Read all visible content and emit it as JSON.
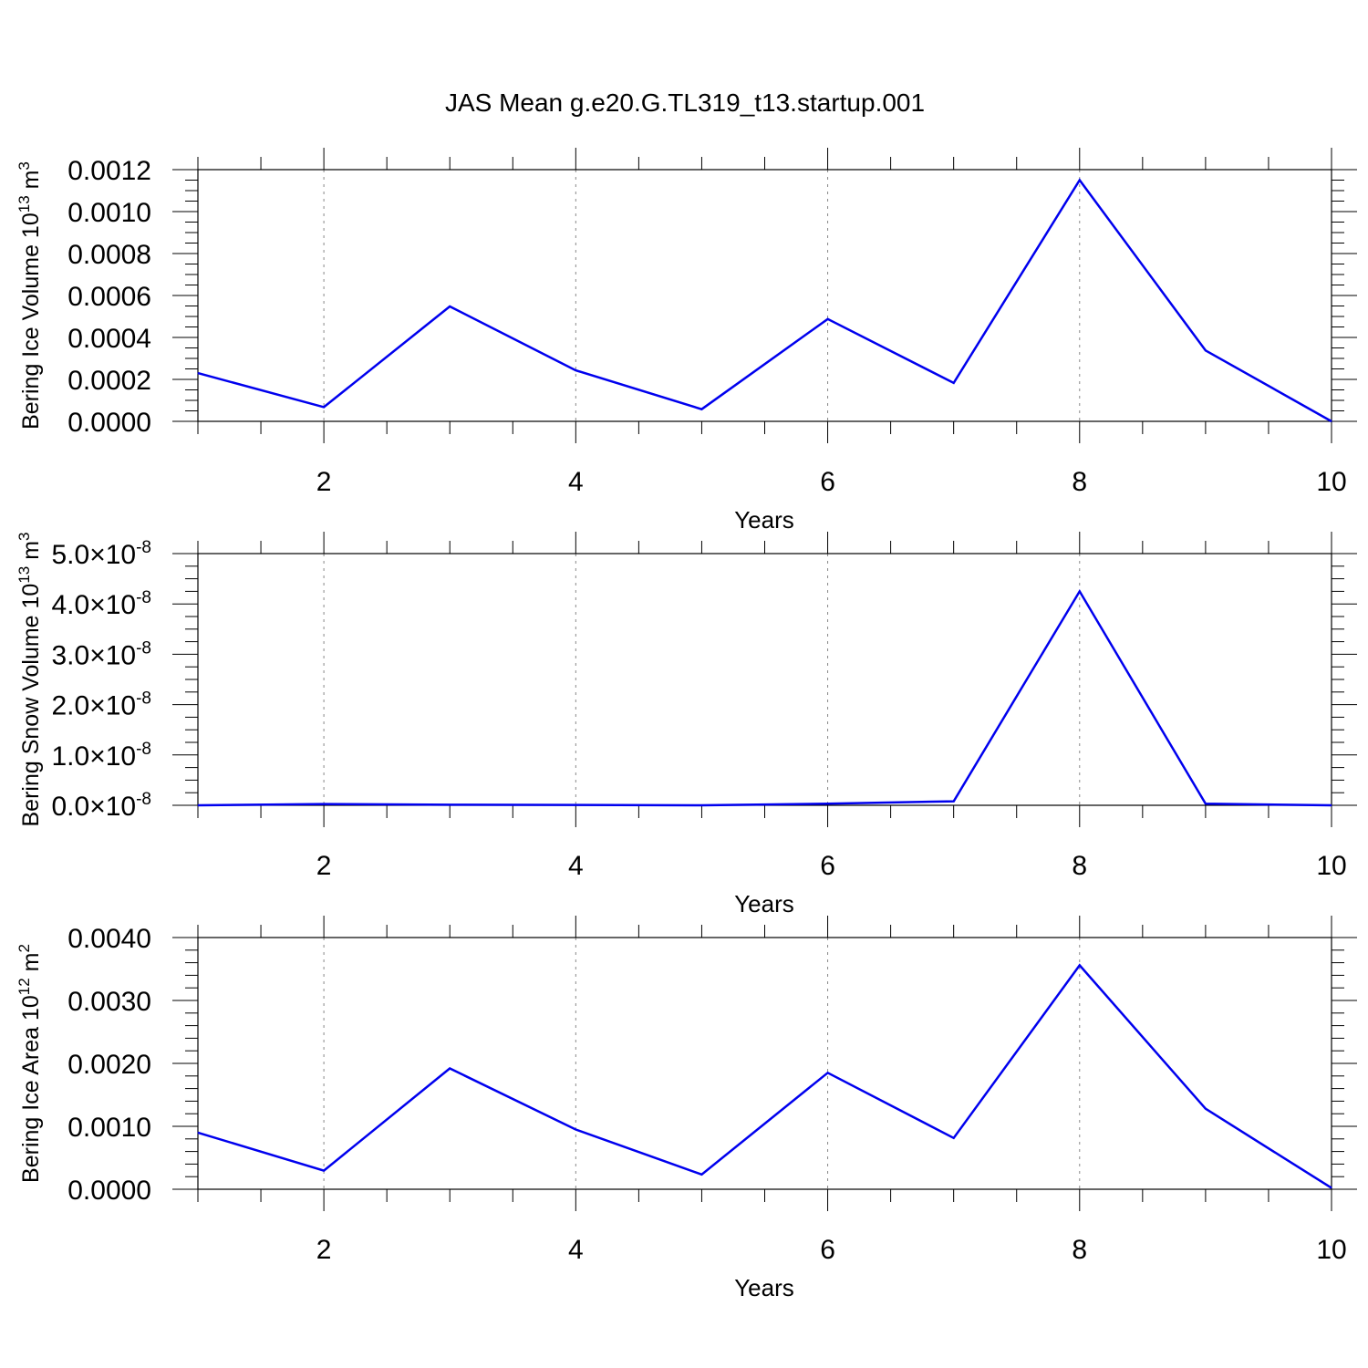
{
  "title": "JAS Mean g.e20.G.TL319_t13.startup.001",
  "line_color": "#0000ee",
  "chart_data": [
    {
      "type": "line",
      "xlabel": "Years",
      "ylabel": "Bering Ice Volume 10",
      "ylabel_exp": "13",
      "ylabel_unit": " m",
      "ylabel_unit_exp": "3",
      "xlim": [
        1,
        10
      ],
      "ylim": [
        0,
        0.0012
      ],
      "x_ticks": [
        2,
        4,
        6,
        8,
        10
      ],
      "y_ticks": [
        0,
        0.0002,
        0.0004,
        0.0006,
        0.0008,
        0.001,
        0.0012
      ],
      "y_tick_labels": [
        "0.0000",
        "0.0002",
        "0.0004",
        "0.0006",
        "0.0008",
        "0.0010",
        "0.0012"
      ],
      "y_minor_step": 5e-05,
      "grid": "vertical dashed at major x ticks",
      "series": [
        {
          "x": [
            1,
            2,
            3,
            4,
            5,
            6,
            7,
            8,
            9,
            10
          ],
          "values": [
            0.00023,
            6.8e-05,
            0.000548,
            0.000243,
            5.8e-05,
            0.000488,
            0.000183,
            0.00115,
            0.000338,
            0.0
          ]
        }
      ]
    },
    {
      "type": "line",
      "xlabel": "Years",
      "ylabel": "Bering Snow Volume 10",
      "ylabel_exp": "13",
      "ylabel_unit": " m",
      "ylabel_unit_exp": "3",
      "xlim": [
        1,
        10
      ],
      "ylim": [
        0,
        5e-08
      ],
      "x_ticks": [
        2,
        4,
        6,
        8,
        10
      ],
      "y_ticks": [
        0,
        1e-08,
        2e-08,
        3e-08,
        4e-08,
        5e-08
      ],
      "y_tick_mantissas": [
        "0.0",
        "1.0",
        "2.0",
        "3.0",
        "4.0",
        "5.0"
      ],
      "y_tick_times": "×10",
      "y_tick_exp": "-8",
      "y_minor_step": 2.5e-09,
      "grid": "vertical dashed at major x ticks",
      "series": [
        {
          "x": [
            1,
            2,
            3,
            4,
            5,
            6,
            7,
            8,
            9,
            10
          ],
          "values": [
            0.0,
            2.5e-10,
            1e-10,
            8e-11,
            0.0,
            3e-10,
            8e-10,
            4.25e-08,
            3e-10,
            0.0
          ]
        }
      ]
    },
    {
      "type": "line",
      "xlabel": "Years",
      "ylabel": "Bering Ice Area 10",
      "ylabel_exp": "12",
      "ylabel_unit": " m",
      "ylabel_unit_exp": "2",
      "xlim": [
        1,
        10
      ],
      "ylim": [
        0,
        0.004
      ],
      "x_ticks": [
        2,
        4,
        6,
        8,
        10
      ],
      "y_ticks": [
        0,
        0.001,
        0.002,
        0.003,
        0.004
      ],
      "y_tick_labels": [
        "0.0000",
        "0.0010",
        "0.0020",
        "0.0030",
        "0.0040"
      ],
      "y_minor_step": 0.0002,
      "grid": "vertical dashed at major x ticks",
      "series": [
        {
          "x": [
            1,
            2,
            3,
            4,
            5,
            6,
            7,
            8,
            9,
            10
          ],
          "values": [
            0.0009,
            0.000295,
            0.00192,
            0.00095,
            0.000235,
            0.00185,
            0.000815,
            0.00356,
            0.00128,
            2e-05
          ]
        }
      ]
    }
  ]
}
